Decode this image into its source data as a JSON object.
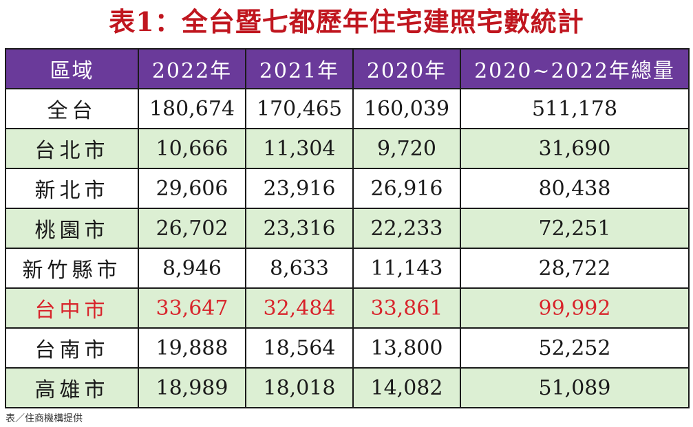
{
  "title": "表1：全台暨七都歷年住宅建照宅數統計",
  "headers": [
    "區域",
    "2022年",
    "2021年",
    "2020年",
    "2020~2022年總量"
  ],
  "rows": [
    {
      "region": "全台",
      "y2022": "180,674",
      "y2021": "170,465",
      "y2020": "160,039",
      "total": "511,178"
    },
    {
      "region": "台北市",
      "y2022": "10,666",
      "y2021": "11,304",
      "y2020": "9,720",
      "total": "31,690"
    },
    {
      "region": "新北市",
      "y2022": "29,606",
      "y2021": "23,916",
      "y2020": "26,916",
      "total": "80,438"
    },
    {
      "region": "桃園市",
      "y2022": "26,702",
      "y2021": "23,316",
      "y2020": "22,233",
      "total": "72,251"
    },
    {
      "region": "新竹縣市",
      "y2022": "8,946",
      "y2021": "8,633",
      "y2020": "11,143",
      "total": "28,722"
    },
    {
      "region": "台中市",
      "y2022": "33,647",
      "y2021": "32,484",
      "y2020": "33,861",
      "total": "99,992"
    },
    {
      "region": "台南市",
      "y2022": "19,888",
      "y2021": "18,564",
      "y2020": "13,800",
      "total": "52,252"
    },
    {
      "region": "高雄市",
      "y2022": "18,989",
      "y2021": "18,018",
      "y2020": "14,082",
      "total": "51,089"
    }
  ],
  "source": "表／住商機構提供",
  "colors": {
    "title": "#c0161f",
    "header_bg": "#6a3a9a",
    "header_text": "#ffffff",
    "stripe": "#dcefd3",
    "highlight_text": "#d8242b"
  }
}
